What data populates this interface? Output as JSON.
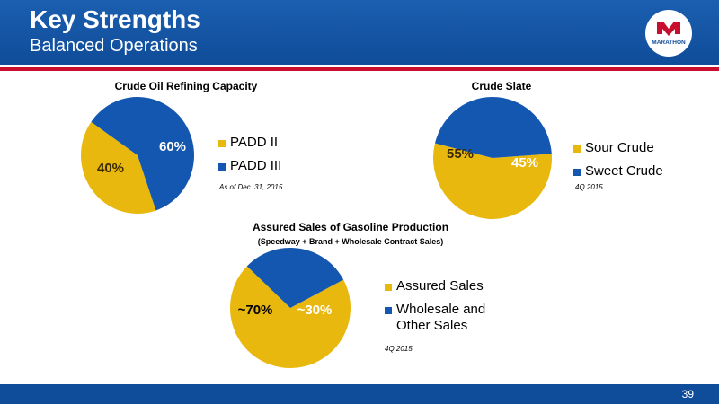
{
  "header": {
    "title": "Key Strengths",
    "subtitle": "Balanced Operations",
    "logo_text": "MARATHON"
  },
  "footer": {
    "page_number": "39"
  },
  "colors": {
    "gold": "#e9b80e",
    "blue": "#1457b0",
    "header_blue": "#0f4c99",
    "accent_red": "#c8102e"
  },
  "chart_data": [
    {
      "type": "pie",
      "title": "Crude Oil Refining Capacity",
      "categories": [
        "PADD II",
        "PADD III"
      ],
      "values": [
        40,
        60
      ],
      "labels": [
        "40%",
        "60%"
      ],
      "colors": [
        "#e9b80e",
        "#1457b0"
      ],
      "note": "As of Dec. 31, 2015"
    },
    {
      "type": "pie",
      "title": "Crude Slate",
      "categories": [
        "Sour Crude",
        "Sweet Crude"
      ],
      "values": [
        55,
        45
      ],
      "labels": [
        "55%",
        "45%"
      ],
      "colors": [
        "#e9b80e",
        "#1457b0"
      ],
      "note": "4Q 2015"
    },
    {
      "type": "pie",
      "title": "Assured Sales of Gasoline Production",
      "subtitle": "(Speedway + Brand + Wholesale Contract Sales)",
      "categories": [
        "Assured Sales",
        "Wholesale and Other Sales"
      ],
      "values": [
        70,
        30
      ],
      "labels": [
        "~70%",
        "~30%"
      ],
      "colors": [
        "#e9b80e",
        "#1457b0"
      ],
      "note": "4Q 2015"
    }
  ]
}
